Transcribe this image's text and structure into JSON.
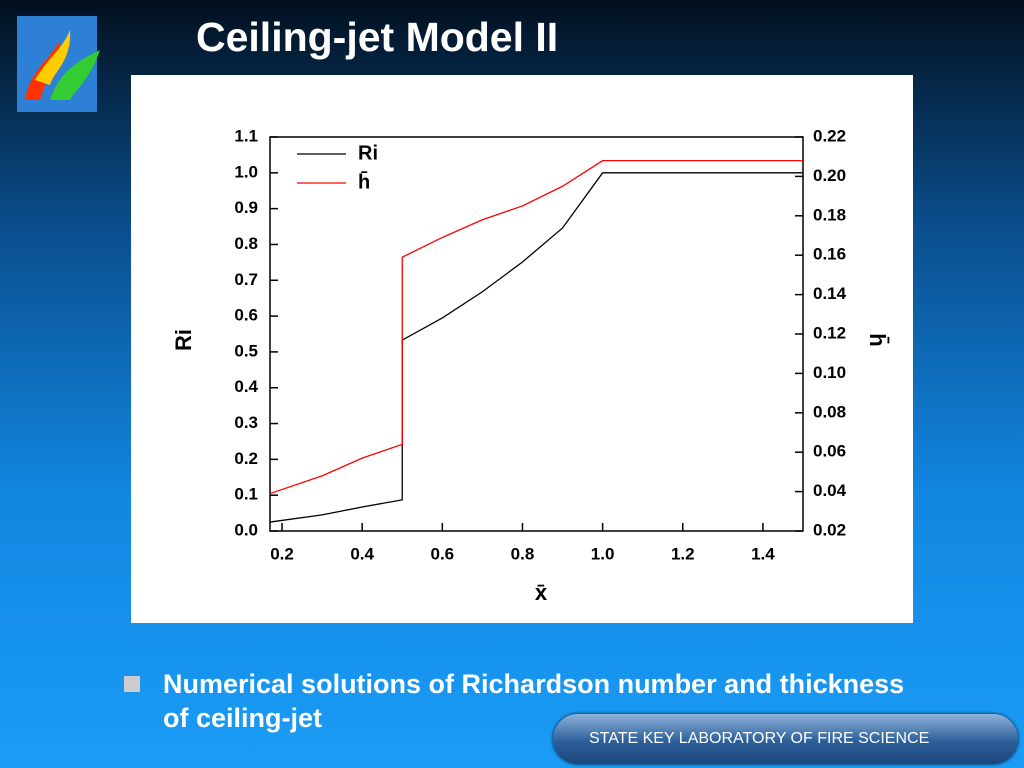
{
  "slide": {
    "title": "Ceiling-jet Model II",
    "caption": "Numerical solutions of Richardson number and thickness of ceiling-jet",
    "footer": "STATE KEY LABORATORY OF FIRE SCIENCE"
  },
  "chart_data": {
    "type": "line",
    "xlabel": "x̄",
    "ylabel": "Ri",
    "y2label": "h̄",
    "x": [
      0.17,
      0.3,
      0.4,
      0.5,
      0.5,
      0.6,
      0.7,
      0.8,
      0.9,
      1.0,
      1.5
    ],
    "series": [
      {
        "name": "Ri",
        "color": "#000000",
        "values": [
          0.025,
          0.045,
          0.067,
          0.087,
          0.533,
          0.595,
          0.668,
          0.751,
          0.846,
          1.0,
          1.0
        ]
      },
      {
        "name": "h̄",
        "color": "#ff0000",
        "axis": "y2",
        "values": [
          0.039,
          0.048,
          0.057,
          0.064,
          0.159,
          0.169,
          0.178,
          0.185,
          0.195,
          0.208,
          0.208
        ]
      }
    ],
    "xlim": [
      0.17,
      1.5
    ],
    "xticks": [
      0.2,
      0.4,
      0.6,
      0.8,
      {
        "value": 1.0,
        "label": "1.0"
      },
      1.2,
      1.4
    ],
    "ylim": [
      0,
      1.1
    ],
    "yticks": [
      {
        "value": 0,
        "label": "0.0"
      },
      0.1,
      0.2,
      0.3,
      0.4,
      0.5,
      0.6,
      0.7,
      0.8,
      0.9,
      {
        "value": 1.0,
        "label": "1.0"
      },
      1.1
    ],
    "y2lim": [
      0.02,
      0.22
    ],
    "y2ticks": [
      0.02,
      0.04,
      0.06,
      0.08,
      {
        "value": 0.1,
        "label": "0.10"
      },
      0.12,
      0.14,
      0.16,
      0.18,
      {
        "value": 0.2,
        "label": "0.20"
      },
      0.22
    ],
    "legend": "upper left"
  }
}
